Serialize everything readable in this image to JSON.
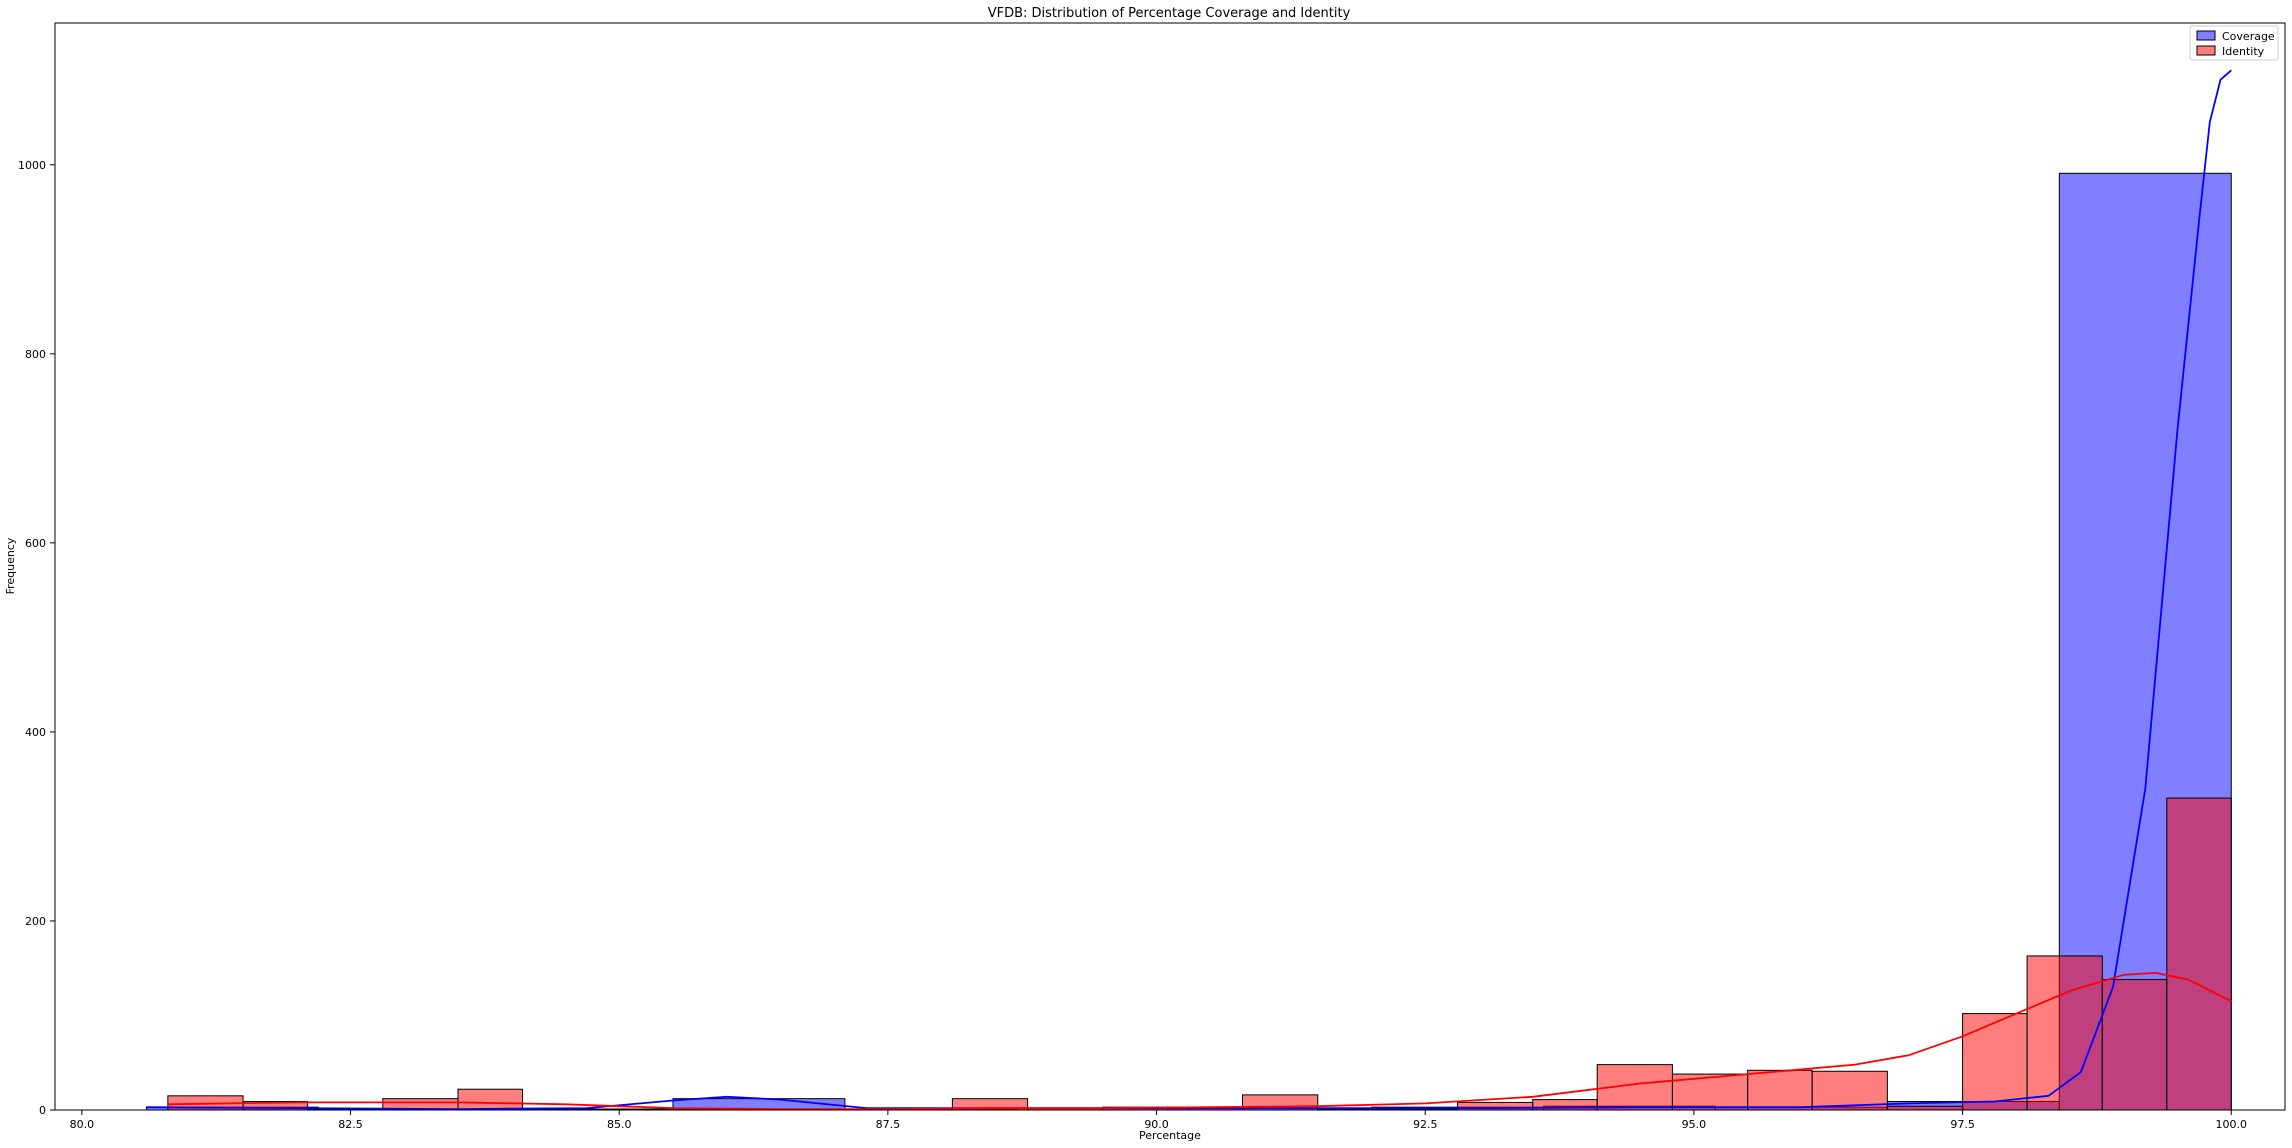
{
  "chart_data": {
    "type": "bar",
    "title": "VFDB: Distribution of Percentage Coverage and Identity",
    "xlabel": "Percentage",
    "ylabel": "Frequency",
    "xlim": [
      79.75,
      100.5
    ],
    "ylim": [
      0,
      1150
    ],
    "x_ticks": [
      80.0,
      82.5,
      85.0,
      87.5,
      90.0,
      92.5,
      95.0,
      97.5,
      100.0
    ],
    "x_tick_labels": [
      "80.0",
      "82.5",
      "85.0",
      "87.5",
      "90.0",
      "92.5",
      "95.0",
      "97.5",
      "100.0"
    ],
    "y_ticks": [
      0,
      200,
      400,
      600,
      800,
      1000
    ],
    "y_tick_labels": [
      "0",
      "200",
      "400",
      "600",
      "800",
      "1000"
    ],
    "grid": false,
    "legend": {
      "placement": "upper right",
      "entries": [
        "Coverage",
        "Identity"
      ]
    },
    "series": [
      {
        "name": "Coverage",
        "color": "#0000ff",
        "bars": [
          {
            "x0": 80.6,
            "x1": 82.2,
            "count": 3
          },
          {
            "x0": 82.2,
            "x1": 83.9,
            "count": 1
          },
          {
            "x0": 83.9,
            "x1": 85.5,
            "count": 1
          },
          {
            "x0": 85.5,
            "x1": 87.1,
            "count": 12
          },
          {
            "x0": 87.1,
            "x1": 88.7,
            "count": 1
          },
          {
            "x0": 88.7,
            "x1": 90.3,
            "count": 2
          },
          {
            "x0": 90.3,
            "x1": 92.0,
            "count": 2
          },
          {
            "x0": 92.0,
            "x1": 93.6,
            "count": 3
          },
          {
            "x0": 93.6,
            "x1": 95.2,
            "count": 4
          },
          {
            "x0": 95.2,
            "x1": 96.8,
            "count": 3
          },
          {
            "x0": 96.8,
            "x1": 98.4,
            "count": 9
          },
          {
            "x0": 98.4,
            "x1": 100.0,
            "count": 991
          }
        ],
        "kde": [
          [
            80.6,
            3
          ],
          [
            82.0,
            2
          ],
          [
            83.5,
            1
          ],
          [
            84.7,
            2
          ],
          [
            85.5,
            10
          ],
          [
            86.0,
            14
          ],
          [
            86.5,
            11
          ],
          [
            87.3,
            2
          ],
          [
            88.5,
            2
          ],
          [
            90.0,
            2
          ],
          [
            91.5,
            2
          ],
          [
            93.0,
            2
          ],
          [
            94.5,
            3
          ],
          [
            96.0,
            3
          ],
          [
            97.0,
            7
          ],
          [
            97.8,
            9
          ],
          [
            98.3,
            15
          ],
          [
            98.6,
            40
          ],
          [
            98.9,
            130
          ],
          [
            99.2,
            340
          ],
          [
            99.5,
            720
          ],
          [
            99.7,
            940
          ],
          [
            99.8,
            1045
          ],
          [
            99.9,
            1090
          ],
          [
            100.0,
            1100
          ]
        ]
      },
      {
        "name": "Identity",
        "color": "#ff0000",
        "bars": [
          {
            "x0": 80.8,
            "x1": 81.5,
            "count": 15
          },
          {
            "x0": 81.5,
            "x1": 82.1,
            "count": 9
          },
          {
            "x0": 82.1,
            "x1": 82.8,
            "count": 1
          },
          {
            "x0": 82.8,
            "x1": 83.5,
            "count": 12
          },
          {
            "x0": 83.5,
            "x1": 84.1,
            "count": 22
          },
          {
            "x0": 84.1,
            "x1": 84.8,
            "count": 1
          },
          {
            "x0": 84.8,
            "x1": 85.5,
            "count": 1
          },
          {
            "x0": 85.5,
            "x1": 86.1,
            "count": 1
          },
          {
            "x0": 86.1,
            "x1": 86.8,
            "count": 1
          },
          {
            "x0": 86.8,
            "x1": 87.5,
            "count": 1
          },
          {
            "x0": 87.5,
            "x1": 88.1,
            "count": 2
          },
          {
            "x0": 88.1,
            "x1": 88.8,
            "count": 12
          },
          {
            "x0": 88.8,
            "x1": 89.5,
            "count": 2
          },
          {
            "x0": 89.5,
            "x1": 90.1,
            "count": 3
          },
          {
            "x0": 90.1,
            "x1": 90.8,
            "count": 3
          },
          {
            "x0": 90.8,
            "x1": 91.5,
            "count": 16
          },
          {
            "x0": 91.5,
            "x1": 92.1,
            "count": 1
          },
          {
            "x0": 92.1,
            "x1": 92.8,
            "count": 1
          },
          {
            "x0": 92.8,
            "x1": 93.5,
            "count": 8
          },
          {
            "x0": 93.5,
            "x1": 94.1,
            "count": 11
          },
          {
            "x0": 94.1,
            "x1": 94.8,
            "count": 48
          },
          {
            "x0": 94.8,
            "x1": 95.5,
            "count": 38
          },
          {
            "x0": 95.5,
            "x1": 96.1,
            "count": 42
          },
          {
            "x0": 96.1,
            "x1": 96.8,
            "count": 41
          },
          {
            "x0": 96.8,
            "x1": 97.5,
            "count": 4
          },
          {
            "x0": 97.5,
            "x1": 98.1,
            "count": 102
          },
          {
            "x0": 98.1,
            "x1": 98.8,
            "count": 163
          },
          {
            "x0": 98.8,
            "x1": 99.4,
            "count": 138
          },
          {
            "x0": 99.4,
            "x1": 100.0,
            "count": 330
          }
        ],
        "kde": [
          [
            80.8,
            6
          ],
          [
            82.0,
            8
          ],
          [
            83.5,
            8
          ],
          [
            84.5,
            6
          ],
          [
            85.5,
            2
          ],
          [
            86.5,
            1
          ],
          [
            87.5,
            1
          ],
          [
            88.5,
            2
          ],
          [
            89.5,
            2
          ],
          [
            90.5,
            3
          ],
          [
            91.5,
            4
          ],
          [
            92.5,
            7
          ],
          [
            93.5,
            14
          ],
          [
            94.5,
            28
          ],
          [
            95.5,
            38
          ],
          [
            96.5,
            48
          ],
          [
            97.0,
            58
          ],
          [
            97.5,
            78
          ],
          [
            98.0,
            102
          ],
          [
            98.5,
            126
          ],
          [
            99.0,
            143
          ],
          [
            99.3,
            145
          ],
          [
            99.6,
            138
          ],
          [
            100.0,
            115
          ]
        ]
      }
    ]
  }
}
